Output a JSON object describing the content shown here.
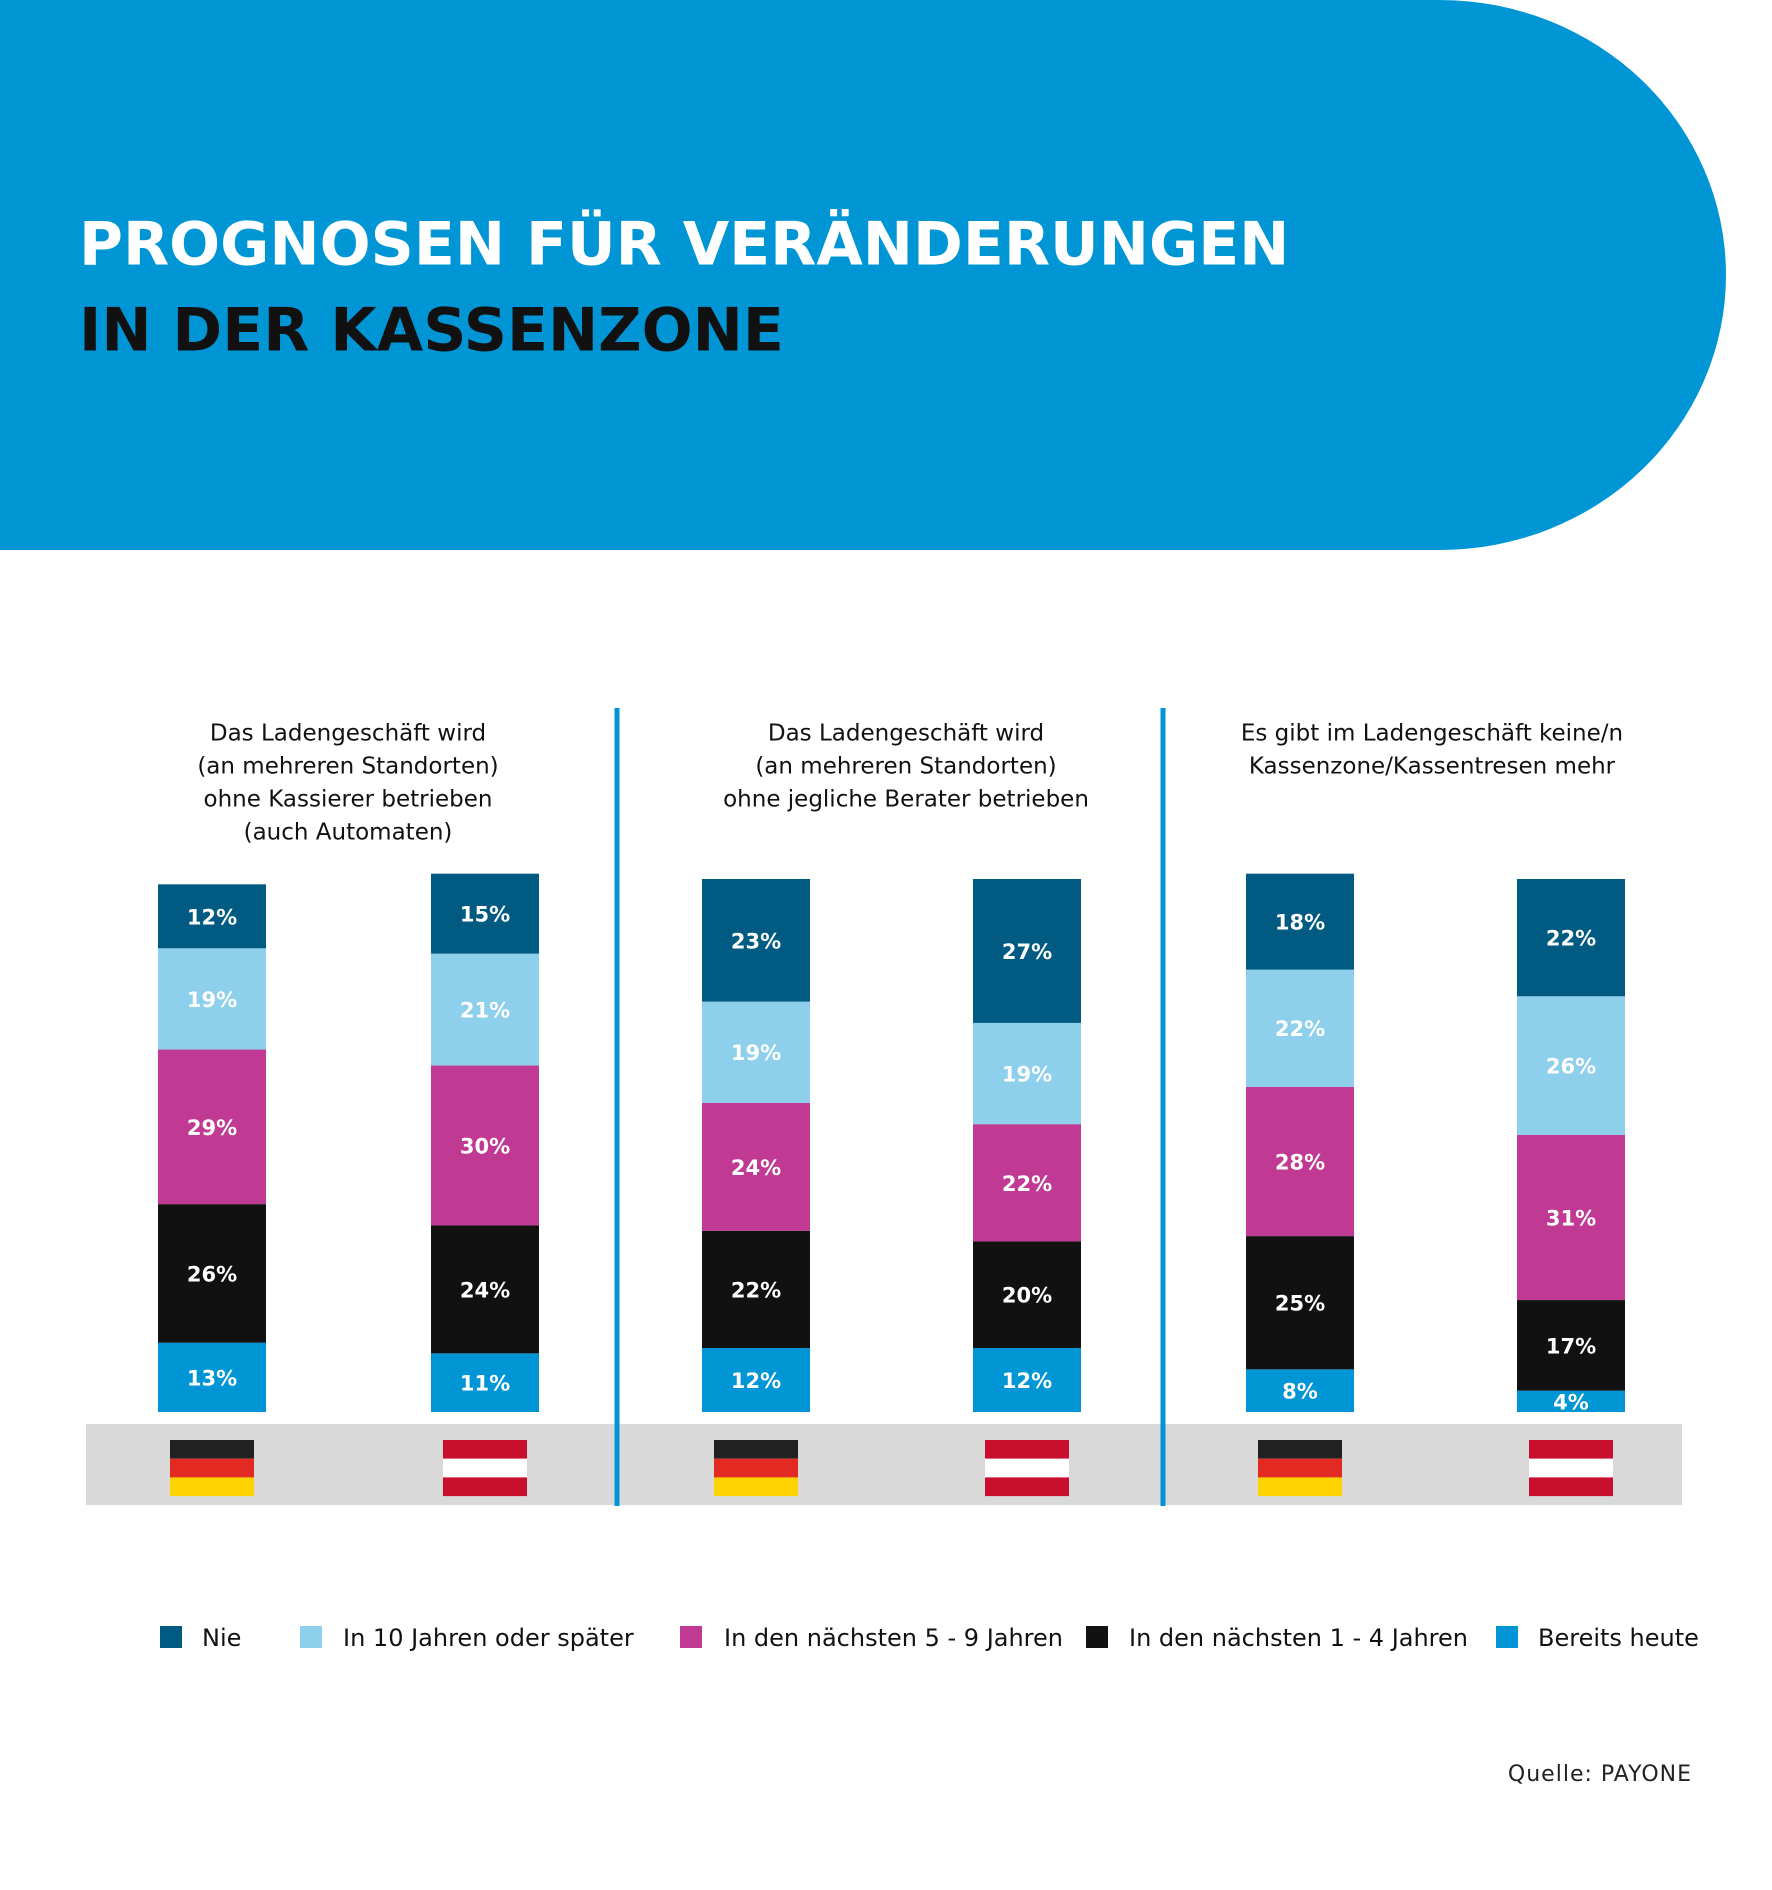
{
  "header": {
    "title": [
      "PROGNOSEN FÜR VERÄNDERUNGEN",
      "IN DER KASSENZONE"
    ]
  },
  "chart_data": [
    {
      "type": "stacked-bar",
      "title": [
        "Das Ladengeschäft wird",
        "(an mehreren Standorten)",
        "ohne Kassierer betrieben",
        "(auch Automaten)"
      ],
      "categories": [
        null,
        null
      ],
      "series": [
        {
          "name": "Nie",
          "color": "#005a82",
          "values": [
            12,
            15
          ],
          "value_labels": [
            "12%",
            "15%"
          ]
        },
        {
          "name": "In 10 Jahren oder später",
          "color": "#8ecfec",
          "values": [
            19,
            21
          ],
          "value_labels": [
            "19%",
            "21%"
          ]
        },
        {
          "name": "In den nächsten 5 - 9 Jahren",
          "color": "#c03a94",
          "values": [
            29,
            30
          ],
          "value_labels": [
            "29%",
            "30%"
          ]
        },
        {
          "name": "In den nächsten 1 - 4 Jahren",
          "color": "#111111",
          "values": [
            26,
            24
          ],
          "value_labels": [
            "26%",
            "24%"
          ]
        },
        {
          "name": "Bereits heute",
          "color": "#0096d6",
          "values": [
            13,
            11
          ],
          "value_labels": [
            "13%",
            "11%"
          ]
        }
      ]
    },
    {
      "type": "stacked-bar",
      "title": [
        "Das Ladengeschäft wird",
        "(an mehreren Standorten)",
        "ohne jegliche Berater betrieben"
      ],
      "categories": [
        null,
        null
      ],
      "series": [
        {
          "name": "Nie",
          "color": "#005a82",
          "values": [
            23,
            27
          ],
          "value_labels": [
            "23%",
            "27%"
          ]
        },
        {
          "name": "In 10 Jahren oder später",
          "color": "#8ecfec",
          "values": [
            19,
            19
          ],
          "value_labels": [
            "19%",
            "19%"
          ]
        },
        {
          "name": "In den nächsten 5 - 9 Jahren",
          "color": "#c03a94",
          "values": [
            24,
            22
          ],
          "value_labels": [
            "24%",
            "22%"
          ]
        },
        {
          "name": "In den nächsten 1 - 4 Jahren",
          "color": "#111111",
          "values": [
            22,
            20
          ],
          "value_labels": [
            "22%",
            "20%"
          ]
        },
        {
          "name": "Bereits heute",
          "color": "#0096d6",
          "values": [
            12,
            12
          ],
          "value_labels": [
            "12%",
            "12%"
          ]
        }
      ]
    },
    {
      "type": "stacked-bar",
      "title": [
        "Es gibt im Ladengeschäft keine/n",
        "Kassenzone/Kassentresen mehr"
      ],
      "categories": [
        null,
        null
      ],
      "series": [
        {
          "name": "Nie",
          "color": "#005a82",
          "values": [
            18,
            22
          ],
          "value_labels": [
            "18%",
            "22%"
          ]
        },
        {
          "name": "In 10 Jahren oder später",
          "color": "#8ecfec",
          "values": [
            22,
            26
          ],
          "value_labels": [
            "22%",
            "26%"
          ]
        },
        {
          "name": "In den nächsten 5 - 9 Jahren",
          "color": "#c03a94",
          "values": [
            28,
            31
          ],
          "value_labels": [
            "28%",
            "31%"
          ]
        },
        {
          "name": "In den nächsten 1 - 4 Jahren",
          "color": "#111111",
          "values": [
            25,
            17
          ],
          "value_labels": [
            "25%",
            "17%"
          ]
        },
        {
          "name": "Bereits heute",
          "color": "#0096d6",
          "values": [
            8,
            4
          ],
          "value_labels": [
            "8%",
            "4%"
          ]
        }
      ]
    }
  ],
  "source": "Quelle: PAYONE"
}
